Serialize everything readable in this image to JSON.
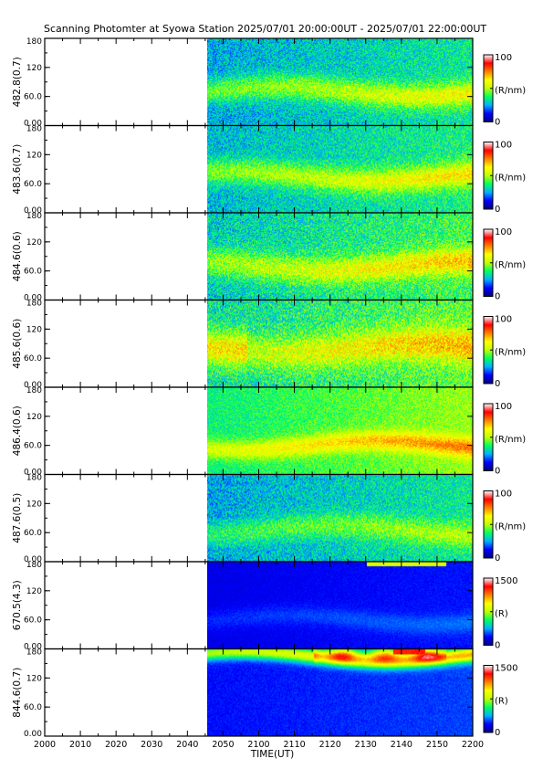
{
  "title": "Scanning Photomter at Syowa Station 2025/07/01 20:00:00UT - 2025/07/01 22:00:00UT",
  "chart_data": {
    "type": "heatmap",
    "title": "Scanning Photomter at Syowa Station 2025/07/01 20:00:00UT - 2025/07/01 22:00:00UT",
    "xlabel": "TIME(UT)",
    "xlim": [
      "2000",
      "2200"
    ],
    "x_ticks": [
      "2000",
      "2010",
      "2020",
      "2030",
      "2040",
      "2050",
      "2100",
      "2110",
      "2120",
      "2130",
      "2140",
      "2150",
      "2200"
    ],
    "data_start": "2045",
    "ylim": [
      0,
      180
    ],
    "y_ticks": [
      "0.00",
      "60.0",
      "120",
      "180"
    ],
    "colormap": [
      "#000080",
      "#0000ff",
      "#00b0ff",
      "#00ff60",
      "#c0ff00",
      "#ffff00",
      "#ff8000",
      "#ff0000",
      "#ffffff"
    ],
    "panels": [
      {
        "ylabel": "482.8(0.7)",
        "cbar_max": "100",
        "cbar_min": "0",
        "cbar_unit": "(R/nm)",
        "band_center": 70,
        "band_width": 25,
        "base_level": 0.3,
        "band_level": 0.52,
        "noise": 0.22
      },
      {
        "ylabel": "483.6(0.7)",
        "cbar_max": "100",
        "cbar_min": "0",
        "cbar_unit": "(R/nm)",
        "band_center": 75,
        "band_width": 25,
        "base_level": 0.32,
        "band_level": 0.55,
        "noise": 0.22
      },
      {
        "ylabel": "484.6(0.6)",
        "cbar_max": "100",
        "cbar_min": "0",
        "cbar_unit": "(R/nm)",
        "band_center": 70,
        "band_width": 28,
        "base_level": 0.35,
        "band_level": 0.58,
        "noise": 0.25
      },
      {
        "ylabel": "485.6(0.6)",
        "cbar_max": "100",
        "cbar_min": "0",
        "cbar_unit": "(R/nm)",
        "band_center": 80,
        "band_width": 35,
        "base_level": 0.38,
        "band_level": 0.6,
        "noise": 0.28
      },
      {
        "ylabel": "486.4(0.6)",
        "cbar_max": "100",
        "cbar_min": "0",
        "cbar_unit": "(R/nm)",
        "band_center": 60,
        "band_width": 20,
        "base_level": 0.42,
        "band_level": 0.66,
        "noise": 0.15
      },
      {
        "ylabel": "487.6(0.5)",
        "cbar_max": "100",
        "cbar_min": "0",
        "cbar_unit": "(R/nm)",
        "band_center": 65,
        "band_width": 25,
        "base_level": 0.3,
        "band_level": 0.45,
        "noise": 0.22
      },
      {
        "ylabel": "670.5(4.3)",
        "cbar_max": "1500",
        "cbar_min": "0",
        "cbar_unit": "(R)",
        "band_center": 60,
        "band_width": 20,
        "base_level": 0.12,
        "band_level": 0.18,
        "noise": 0.05
      },
      {
        "ylabel": "844.6(0.7)",
        "cbar_max": "1500",
        "cbar_min": "0",
        "cbar_unit": "(R)",
        "band_center": 165,
        "band_width": 15,
        "base_level": 0.15,
        "band_level": 0.6,
        "noise": 0.06
      }
    ]
  }
}
